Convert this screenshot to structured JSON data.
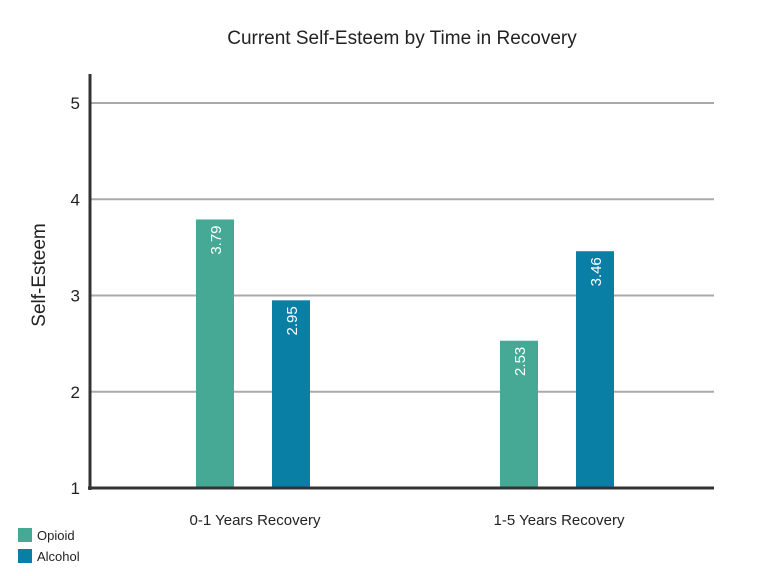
{
  "chart_data": {
    "type": "bar",
    "title": "Current Self-Esteem by Time in Recovery",
    "xlabel": "",
    "ylabel": "Self-Esteem",
    "ylim": [
      1,
      5
    ],
    "yticks": [
      1,
      2,
      3,
      4,
      5
    ],
    "grid": true,
    "legend_position": "bottom-left",
    "categories": [
      "0-1 Years Recovery",
      "1-5 Years Recovery"
    ],
    "series": [
      {
        "name": "Opioid",
        "color": "#45a995",
        "values": [
          3.79,
          2.53
        ]
      },
      {
        "name": "Alcohol",
        "color": "#0a7fa6",
        "values": [
          2.95,
          3.46
        ]
      }
    ],
    "axis_color": "#333333",
    "grid_color": "#aaaaaa"
  }
}
